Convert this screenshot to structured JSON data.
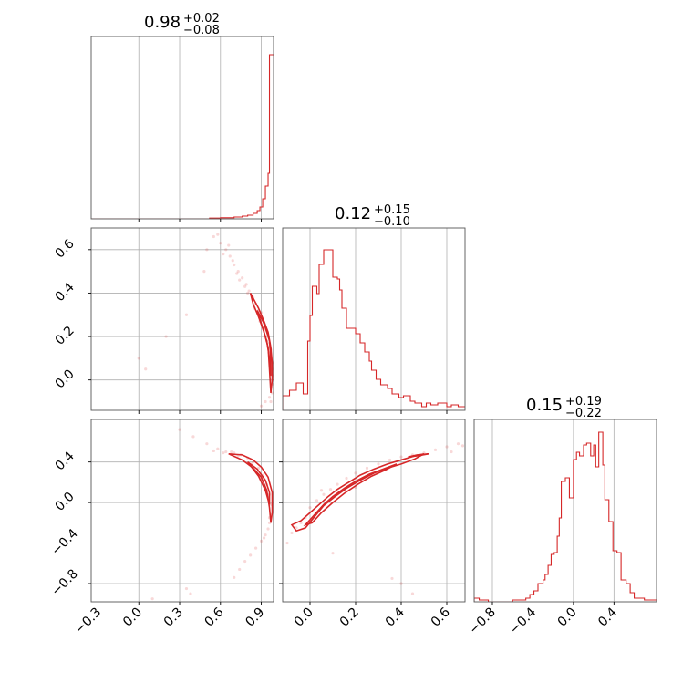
{
  "colors": {
    "accent": "#d62728",
    "grid": "#b0b0b0",
    "frame": "#555555"
  },
  "chart_data": [
    {
      "type": "histogram",
      "panel": "diag-0",
      "title": {
        "value": "0.98",
        "plus": "+0.02",
        "minus": "−0.08"
      },
      "xlim": [
        -0.35,
        0.99
      ],
      "x_ticks": [
        -0.3,
        0.0,
        0.3,
        0.6,
        0.9
      ],
      "bins": [
        [
          -0.35,
          0
        ],
        [
          0.52,
          0.004
        ],
        [
          0.6,
          0.006
        ],
        [
          0.7,
          0.01
        ],
        [
          0.76,
          0.015
        ],
        [
          0.8,
          0.02
        ],
        [
          0.84,
          0.03
        ],
        [
          0.87,
          0.045
        ],
        [
          0.89,
          0.065
        ],
        [
          0.91,
          0.11
        ],
        [
          0.93,
          0.18
        ],
        [
          0.95,
          0.25
        ],
        [
          0.96,
          0.9
        ],
        [
          0.99,
          0.9
        ]
      ]
    },
    {
      "type": "histogram",
      "panel": "diag-1",
      "title": {
        "value": "0.12",
        "plus": "+0.15",
        "minus": "−0.10"
      },
      "xlim": [
        -0.12,
        0.68
      ],
      "x_ticks": [
        0.0,
        0.2,
        0.4,
        0.6
      ],
      "bins": [
        [
          -0.12,
          0.08
        ],
        [
          -0.09,
          0.11
        ],
        [
          -0.06,
          0.15
        ],
        [
          -0.03,
          0.09
        ],
        [
          -0.01,
          0.38
        ],
        [
          0.0,
          0.52
        ],
        [
          0.01,
          0.68
        ],
        [
          0.03,
          0.64
        ],
        [
          0.04,
          0.8
        ],
        [
          0.06,
          0.88
        ],
        [
          0.09,
          0.88
        ],
        [
          0.1,
          0.73
        ],
        [
          0.12,
          0.72
        ],
        [
          0.13,
          0.66
        ],
        [
          0.14,
          0.56
        ],
        [
          0.16,
          0.45
        ],
        [
          0.2,
          0.42
        ],
        [
          0.22,
          0.37
        ],
        [
          0.24,
          0.32
        ],
        [
          0.26,
          0.27
        ],
        [
          0.27,
          0.22
        ],
        [
          0.29,
          0.17
        ],
        [
          0.31,
          0.14
        ],
        [
          0.34,
          0.12
        ],
        [
          0.36,
          0.09
        ],
        [
          0.39,
          0.07
        ],
        [
          0.41,
          0.08
        ],
        [
          0.44,
          0.05
        ],
        [
          0.46,
          0.04
        ],
        [
          0.49,
          0.02
        ],
        [
          0.51,
          0.04
        ],
        [
          0.53,
          0.03
        ],
        [
          0.56,
          0.04
        ],
        [
          0.6,
          0.02
        ],
        [
          0.62,
          0.03
        ],
        [
          0.65,
          0.02
        ],
        [
          0.68,
          0.02
        ]
      ]
    },
    {
      "type": "histogram",
      "panel": "diag-2",
      "title": {
        "value": "0.15",
        "plus": "+0.19",
        "minus": "−0.22"
      },
      "xlim": [
        -0.98,
        0.82
      ],
      "x_ticks": [
        -0.8,
        -0.4,
        0.0,
        0.4
      ],
      "bins": [
        [
          -0.98,
          0.02
        ],
        [
          -0.93,
          0.01
        ],
        [
          -0.88,
          0.01
        ],
        [
          -0.84,
          0.0
        ],
        [
          -0.6,
          0.01
        ],
        [
          -0.52,
          0.01
        ],
        [
          -0.47,
          0.02
        ],
        [
          -0.43,
          0.04
        ],
        [
          -0.39,
          0.06
        ],
        [
          -0.35,
          0.1
        ],
        [
          -0.3,
          0.12
        ],
        [
          -0.28,
          0.15
        ],
        [
          -0.25,
          0.2
        ],
        [
          -0.22,
          0.26
        ],
        [
          -0.19,
          0.27
        ],
        [
          -0.16,
          0.36
        ],
        [
          -0.14,
          0.46
        ],
        [
          -0.12,
          0.66
        ],
        [
          -0.08,
          0.68
        ],
        [
          -0.04,
          0.57
        ],
        [
          0.0,
          0.78
        ],
        [
          0.03,
          0.82
        ],
        [
          0.06,
          0.8
        ],
        [
          0.1,
          0.86
        ],
        [
          0.13,
          0.87
        ],
        [
          0.17,
          0.8
        ],
        [
          0.2,
          0.86
        ],
        [
          0.22,
          0.74
        ],
        [
          0.25,
          0.93
        ],
        [
          0.29,
          0.75
        ],
        [
          0.31,
          0.56
        ],
        [
          0.35,
          0.44
        ],
        [
          0.39,
          0.28
        ],
        [
          0.43,
          0.27
        ],
        [
          0.47,
          0.12
        ],
        [
          0.52,
          0.1
        ],
        [
          0.56,
          0.05
        ],
        [
          0.6,
          0.02
        ],
        [
          0.7,
          0.01
        ],
        [
          0.82,
          0.01
        ]
      ]
    },
    {
      "type": "scatter",
      "panel": "lower-1-0",
      "xlim": [
        -0.35,
        0.99
      ],
      "ylim": [
        -0.14,
        0.7
      ],
      "y_ticks": [
        0.0,
        0.2,
        0.4,
        0.6
      ],
      "samples": [
        [
          0.55,
          0.66
        ],
        [
          0.6,
          0.63
        ],
        [
          0.64,
          0.6
        ],
        [
          0.67,
          0.57
        ],
        [
          0.7,
          0.53
        ],
        [
          0.73,
          0.5
        ],
        [
          0.76,
          0.47
        ],
        [
          0.79,
          0.44
        ],
        [
          0.81,
          0.41
        ],
        [
          0.84,
          0.38
        ],
        [
          0.86,
          0.35
        ],
        [
          0.88,
          0.32
        ],
        [
          0.9,
          0.29
        ],
        [
          0.92,
          0.26
        ],
        [
          0.93,
          0.23
        ],
        [
          0.95,
          0.2
        ],
        [
          0.96,
          0.17
        ],
        [
          0.97,
          0.14
        ],
        [
          0.97,
          0.11
        ],
        [
          0.98,
          0.08
        ],
        [
          0.98,
          0.05
        ],
        [
          0.98,
          0.02
        ],
        [
          0.98,
          -0.02
        ],
        [
          0.98,
          -0.06
        ],
        [
          0.97,
          -0.1
        ],
        [
          0.5,
          0.6
        ],
        [
          0.58,
          0.67
        ],
        [
          0.62,
          0.58
        ],
        [
          0.69,
          0.55
        ],
        [
          0.74,
          0.46
        ],
        [
          0.8,
          0.4
        ],
        [
          0.85,
          0.33
        ],
        [
          0.89,
          0.27
        ],
        [
          0.94,
          0.18
        ],
        [
          0.97,
          0.0
        ],
        [
          0.96,
          -0.08
        ],
        [
          0.93,
          -0.1
        ],
        [
          0.9,
          -0.12
        ],
        [
          0.0,
          0.1
        ],
        [
          0.05,
          0.05
        ],
        [
          0.2,
          0.2
        ],
        [
          0.35,
          0.3
        ],
        [
          0.48,
          0.5
        ],
        [
          0.66,
          0.62
        ],
        [
          0.72,
          0.49
        ],
        [
          0.78,
          0.43
        ],
        [
          0.9,
          0.31
        ],
        [
          0.95,
          0.15
        ]
      ],
      "contours": [
        [
          [
            0.82,
            0.4
          ],
          [
            0.88,
            0.33
          ],
          [
            0.92,
            0.27
          ],
          [
            0.95,
            0.22
          ],
          [
            0.97,
            0.15
          ],
          [
            0.98,
            0.08
          ],
          [
            0.98,
            0.0
          ],
          [
            0.97,
            -0.06
          ],
          [
            0.96,
            0.05
          ],
          [
            0.95,
            0.15
          ],
          [
            0.92,
            0.22
          ],
          [
            0.88,
            0.29
          ],
          [
            0.84,
            0.35
          ],
          [
            0.82,
            0.4
          ]
        ],
        [
          [
            0.87,
            0.32
          ],
          [
            0.92,
            0.26
          ],
          [
            0.96,
            0.18
          ],
          [
            0.97,
            0.1
          ],
          [
            0.97,
            0.02
          ],
          [
            0.96,
            0.1
          ],
          [
            0.94,
            0.18
          ],
          [
            0.9,
            0.26
          ],
          [
            0.87,
            0.32
          ]
        ]
      ]
    },
    {
      "type": "scatter",
      "panel": "lower-2-0",
      "xlim": [
        -0.35,
        0.99
      ],
      "ylim": [
        -0.98,
        0.82
      ],
      "y_ticks": [
        -0.8,
        -0.4,
        0.0,
        0.4
      ],
      "samples": [
        [
          0.3,
          0.72
        ],
        [
          0.4,
          0.65
        ],
        [
          0.5,
          0.58
        ],
        [
          0.58,
          0.53
        ],
        [
          0.64,
          0.5
        ],
        [
          0.7,
          0.49
        ],
        [
          0.75,
          0.47
        ],
        [
          0.8,
          0.44
        ],
        [
          0.84,
          0.4
        ],
        [
          0.88,
          0.34
        ],
        [
          0.91,
          0.27
        ],
        [
          0.94,
          0.18
        ],
        [
          0.96,
          0.08
        ],
        [
          0.97,
          -0.02
        ],
        [
          0.97,
          -0.12
        ],
        [
          0.96,
          -0.2
        ],
        [
          0.95,
          -0.26
        ],
        [
          0.93,
          -0.32
        ],
        [
          0.9,
          -0.38
        ],
        [
          0.86,
          -0.45
        ],
        [
          0.82,
          -0.52
        ],
        [
          0.78,
          -0.58
        ],
        [
          0.74,
          -0.66
        ],
        [
          0.7,
          -0.74
        ],
        [
          0.35,
          -0.85
        ],
        [
          0.38,
          -0.9
        ],
        [
          0.1,
          -0.95
        ],
        [
          0.55,
          0.51
        ],
        [
          0.62,
          0.49
        ],
        [
          0.68,
          0.5
        ],
        [
          0.73,
          0.46
        ],
        [
          0.83,
          0.38
        ],
        [
          0.9,
          0.24
        ],
        [
          0.95,
          0.05
        ],
        [
          0.96,
          -0.15
        ],
        [
          0.92,
          -0.35
        ]
      ],
      "contours": [
        [
          [
            0.66,
            0.48
          ],
          [
            0.76,
            0.47
          ],
          [
            0.84,
            0.42
          ],
          [
            0.9,
            0.35
          ],
          [
            0.95,
            0.25
          ],
          [
            0.98,
            0.1
          ],
          [
            0.98,
            -0.1
          ],
          [
            0.97,
            -0.2
          ],
          [
            0.96,
            -0.05
          ],
          [
            0.94,
            0.12
          ],
          [
            0.9,
            0.25
          ],
          [
            0.84,
            0.34
          ],
          [
            0.76,
            0.42
          ],
          [
            0.66,
            0.48
          ]
        ],
        [
          [
            0.8,
            0.4
          ],
          [
            0.87,
            0.33
          ],
          [
            0.93,
            0.22
          ],
          [
            0.96,
            0.1
          ],
          [
            0.96,
            -0.02
          ],
          [
            0.93,
            0.12
          ],
          [
            0.88,
            0.26
          ],
          [
            0.8,
            0.4
          ]
        ]
      ]
    },
    {
      "type": "scatter",
      "panel": "lower-2-1",
      "xlim": [
        -0.12,
        0.68
      ],
      "ylim": [
        -0.98,
        0.82
      ],
      "samples": [
        [
          -0.1,
          -0.4
        ],
        [
          -0.08,
          -0.3
        ],
        [
          -0.06,
          -0.25
        ],
        [
          -0.04,
          -0.2
        ],
        [
          -0.02,
          -0.15
        ],
        [
          0.0,
          -0.05
        ],
        [
          0.03,
          0.02
        ],
        [
          0.06,
          0.08
        ],
        [
          0.09,
          0.13
        ],
        [
          0.12,
          0.18
        ],
        [
          0.16,
          0.24
        ],
        [
          0.2,
          0.29
        ],
        [
          0.25,
          0.34
        ],
        [
          0.3,
          0.38
        ],
        [
          0.35,
          0.42
        ],
        [
          0.4,
          0.45
        ],
        [
          0.45,
          0.47
        ],
        [
          0.5,
          0.49
        ],
        [
          0.55,
          0.52
        ],
        [
          0.6,
          0.55
        ],
        [
          0.65,
          0.58
        ],
        [
          0.36,
          -0.75
        ],
        [
          0.4,
          -0.8
        ],
        [
          0.45,
          -0.9
        ],
        [
          0.1,
          -0.5
        ],
        [
          0.2,
          0.15
        ],
        [
          0.05,
          0.12
        ],
        [
          0.62,
          0.5
        ],
        [
          0.67,
          0.56
        ]
      ],
      "contours": [
        [
          [
            -0.08,
            -0.22
          ],
          [
            -0.04,
            -0.18
          ],
          [
            0.0,
            -0.1
          ],
          [
            0.04,
            -0.02
          ],
          [
            0.08,
            0.06
          ],
          [
            0.12,
            0.13
          ],
          [
            0.17,
            0.2
          ],
          [
            0.22,
            0.27
          ],
          [
            0.28,
            0.33
          ],
          [
            0.34,
            0.38
          ],
          [
            0.4,
            0.42
          ],
          [
            0.46,
            0.46
          ],
          [
            0.5,
            0.48
          ],
          [
            0.46,
            0.43
          ],
          [
            0.4,
            0.38
          ],
          [
            0.34,
            0.34
          ],
          [
            0.28,
            0.29
          ],
          [
            0.22,
            0.22
          ],
          [
            0.16,
            0.14
          ],
          [
            0.11,
            0.06
          ],
          [
            0.06,
            -0.03
          ],
          [
            0.02,
            -0.14
          ],
          [
            -0.02,
            -0.25
          ],
          [
            -0.06,
            -0.28
          ],
          [
            -0.08,
            -0.22
          ]
        ],
        [
          [
            -0.02,
            -0.22
          ],
          [
            0.02,
            -0.12
          ],
          [
            0.06,
            -0.02
          ],
          [
            0.1,
            0.06
          ],
          [
            0.15,
            0.14
          ],
          [
            0.2,
            0.21
          ],
          [
            0.26,
            0.28
          ],
          [
            0.32,
            0.33
          ],
          [
            0.38,
            0.38
          ],
          [
            0.33,
            0.32
          ],
          [
            0.27,
            0.26
          ],
          [
            0.21,
            0.18
          ],
          [
            0.15,
            0.09
          ],
          [
            0.1,
            0.0
          ],
          [
            0.05,
            -0.1
          ],
          [
            0.01,
            -0.2
          ],
          [
            -0.02,
            -0.22
          ]
        ],
        [
          [
            0.43,
            0.45
          ],
          [
            0.47,
            0.47
          ],
          [
            0.52,
            0.48
          ],
          [
            0.47,
            0.46
          ],
          [
            0.43,
            0.45
          ]
        ]
      ]
    }
  ]
}
